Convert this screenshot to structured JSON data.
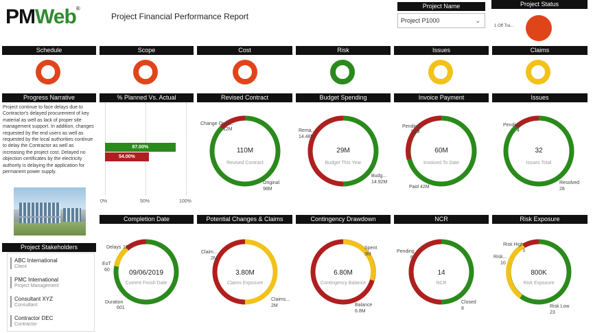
{
  "colors": {
    "red": "#e0451a",
    "darkred": "#b01f1f",
    "green": "#2a8a1c",
    "yellow": "#f2c21a",
    "orange": "#e0451a",
    "pm_green": "#2e8b2e",
    "pm_red": "#b01f1f"
  },
  "header": {
    "logo_a": "PM",
    "logo_b": "Web",
    "logo_reg": "®",
    "report_title": "Project Financial Performance Report"
  },
  "project_name": {
    "label": "Project Name",
    "value": "Project P1000",
    "icon": "chevron-down-icon"
  },
  "project_status": {
    "label": "Project Status",
    "text": "1 Off Tra..."
  },
  "kpi_titles": [
    "Schedule",
    "Scope",
    "Cost",
    "Risk",
    "Issues",
    "Claims"
  ],
  "kpi_colors": [
    "#e0451a",
    "#e0451a",
    "#e0451a",
    "#2a8a1c",
    "#f2c21a",
    "#f2c21a"
  ],
  "section_titles": {
    "progress_narrative": "Progress Narrative",
    "planned_vs_actual": "% Planned Vs. Actual",
    "revised_contract": "Revised Contract",
    "budget_spending": "Budget Spending",
    "invoice_payment": "Invoice Payment",
    "issues": "Issues",
    "completion_date": "Completion Date",
    "potential_changes": "Potential Changes & Claims",
    "contingency": "Contingency Drawdown",
    "ncr": "NCR",
    "risk_exposure": "Risk Exposure",
    "stakeholders": "Project Stakeholders"
  },
  "narrative_text": "Project continue to face delays due to Contractor's delayed procurement of key material as well as lack of proper site management support. In addition, changes requested by the end users as well as requested by the local authorities continue to delay the Contractor as well as increasing the project cost. Delayed no objection certificates by the electricity authority is delaying the application for permanent power supply.",
  "planned_actual": {
    "bars": [
      {
        "label": "87.00%",
        "value": 87,
        "color": "#2a8a1c"
      },
      {
        "label": "54.00%",
        "value": 54,
        "color": "#b01f1f"
      }
    ],
    "ticks": [
      "0%",
      "50%",
      "100%"
    ]
  },
  "donuts": {
    "revised_contract": {
      "center": "110M",
      "sub": "Revised Contract",
      "labels": [
        {
          "name": "Change Orde...",
          "val": "12M"
        },
        {
          "name": "Original",
          "val": "98M"
        }
      ]
    },
    "budget_spending": {
      "center": "29M",
      "sub": "Budget This Year",
      "labels": [
        {
          "name": "Rema...",
          "val": "14.48M"
        },
        {
          "name": "Budg...",
          "val": "14.92M"
        }
      ]
    },
    "invoice_payment": {
      "center": "60M",
      "sub": "Invoiced To Date",
      "labels": [
        {
          "name": "Pending",
          "val": "18M"
        },
        {
          "name": "Paid",
          "val": "42M"
        }
      ]
    },
    "issues": {
      "center": "32",
      "sub": "Issues Total",
      "labels": [
        {
          "name": "Pending",
          "val": "4"
        },
        {
          "name": "Resolved",
          "val": "28"
        }
      ]
    },
    "completion_date": {
      "center": "09/06/2019",
      "sub": "Current Finish Date",
      "labels": [
        {
          "name": "Delays",
          "val": "120"
        },
        {
          "name": "EoT",
          "val": "60"
        },
        {
          "name": "Duration",
          "val": "601"
        }
      ]
    },
    "potential_changes": {
      "center": "3.80M",
      "sub": "Claims Exposure",
      "labels": [
        {
          "name": "Claim...",
          "val": "2M"
        },
        {
          "name": "Claims...",
          "val": "2M"
        }
      ]
    },
    "contingency": {
      "center": "6.80M",
      "sub": "Contingency Balance",
      "labels": [
        {
          "name": "Spent",
          "val": "3M"
        },
        {
          "name": "Balance",
          "val": "6.8M"
        }
      ]
    },
    "ncr": {
      "center": "14",
      "sub": "NCR",
      "labels": [
        {
          "name": "Pending",
          "val": "6"
        },
        {
          "name": "Closed",
          "val": "8"
        }
      ]
    },
    "risk_exposure": {
      "center": "800K",
      "sub": "Risk Expsoure",
      "labels": [
        {
          "name": "Risk High",
          "val": "3"
        },
        {
          "name": "Risk...",
          "val": "10"
        },
        {
          "name": "Risk Low",
          "val": "23"
        }
      ]
    }
  },
  "stakeholders": [
    {
      "name": "ABC International",
      "role": "Client"
    },
    {
      "name": "PMC International",
      "role": "Project Management"
    },
    {
      "name": "Consultant XYZ",
      "role": "Consultant"
    },
    {
      "name": "Contractor DEC",
      "role": "Contractor"
    }
  ]
}
